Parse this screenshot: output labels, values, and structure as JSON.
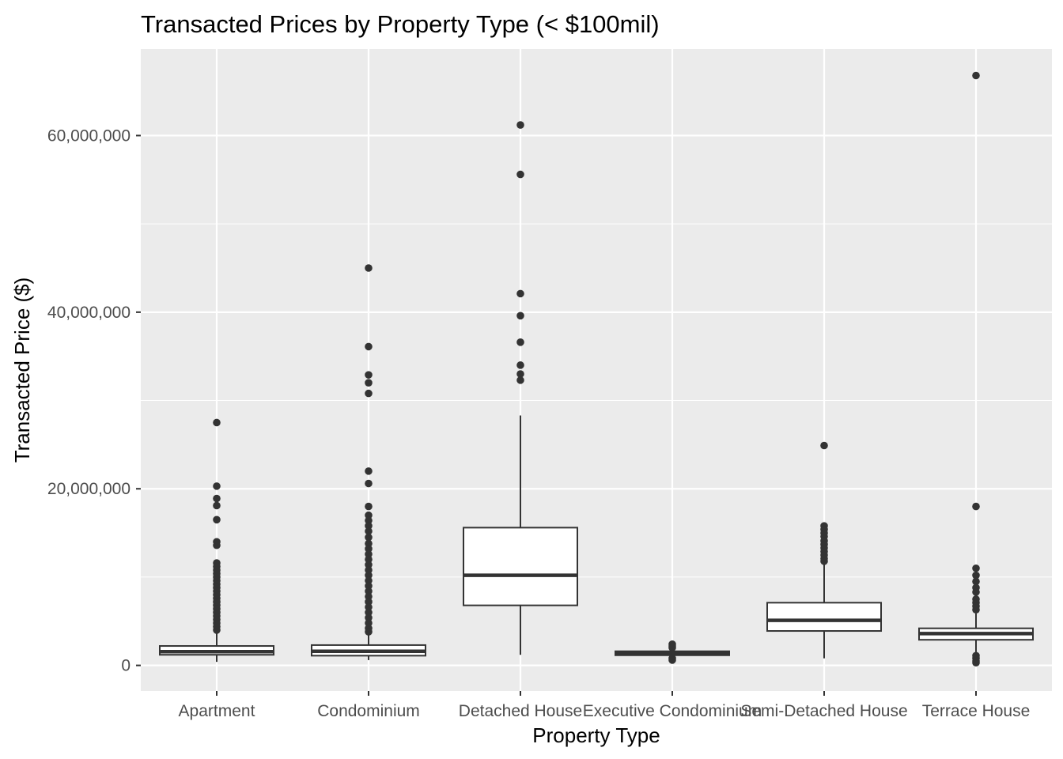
{
  "chart_data": {
    "type": "boxplot",
    "title": "Transacted Prices by Property Type (< $100mil)",
    "xlabel": "Property Type",
    "ylabel": "Transacted Price ($)",
    "ylim": [
      -2900000,
      69800000
    ],
    "yticks": [
      0,
      20000000,
      40000000,
      60000000
    ],
    "ytick_labels": [
      "0",
      "20,000,000",
      "40,000,000",
      "60,000,000"
    ],
    "grid": true,
    "categories": [
      "Apartment",
      "Condominium",
      "Detached House",
      "Executive Condominium",
      "Semi-Detached House",
      "Terrace House"
    ],
    "boxes": [
      {
        "category": "Apartment",
        "whisker_low": 400000,
        "q1": 1200000,
        "median": 1550000,
        "q3": 2200000,
        "whisker_high": 3700000,
        "outliers": [
          27500000,
          20300000,
          18900000,
          18100000,
          16500000,
          14000000,
          13600000,
          11600000,
          11200000,
          10800000,
          10400000,
          10000000,
          9600000,
          9200000,
          8800000,
          8400000,
          8000000,
          7600000,
          7200000,
          6800000,
          6400000,
          6000000,
          5600000,
          5200000,
          4800000,
          4400000,
          4000000
        ]
      },
      {
        "category": "Condominium",
        "whisker_low": 600000,
        "q1": 1100000,
        "median": 1600000,
        "q3": 2300000,
        "whisker_high": 3600000,
        "outliers": [
          45000000,
          36100000,
          32900000,
          32000000,
          30800000,
          22000000,
          20600000,
          18000000,
          17000000,
          16400000,
          15800000,
          15200000,
          14500000,
          13800000,
          13200000,
          12600000,
          12000000,
          11400000,
          10800000,
          10200000,
          9600000,
          9000000,
          8400000,
          7800000,
          7200000,
          6600000,
          6000000,
          5400000,
          4800000,
          4200000,
          3800000
        ]
      },
      {
        "category": "Detached House",
        "whisker_low": 1200000,
        "q1": 6800000,
        "median": 10200000,
        "q3": 15600000,
        "whisker_high": 28300000,
        "outliers": [
          61200000,
          55600000,
          42100000,
          39600000,
          36600000,
          34000000,
          33000000,
          32300000
        ]
      },
      {
        "category": "Executive Condominium",
        "whisker_low": 900000,
        "q1": 1150000,
        "median": 1400000,
        "q3": 1600000,
        "whisker_high": 1750000,
        "outliers": [
          2400000,
          2200000,
          2000000,
          800000,
          600000
        ]
      },
      {
        "category": "Semi-Detached House",
        "whisker_low": 800000,
        "q1": 3900000,
        "median": 5100000,
        "q3": 7100000,
        "whisker_high": 11500000,
        "outliers": [
          24900000,
          15800000,
          15400000,
          15000000,
          14600000,
          14100000,
          13700000,
          13300000,
          12900000,
          12500000,
          12100000,
          11800000
        ]
      },
      {
        "category": "Terrace House",
        "whisker_low": 1500000,
        "q1": 2900000,
        "median": 3600000,
        "q3": 4200000,
        "whisker_high": 5900000,
        "outliers": [
          66800000,
          18000000,
          11000000,
          10200000,
          9500000,
          8800000,
          8300000,
          7500000,
          7100000,
          6700000,
          6300000,
          1100000,
          800000,
          500000,
          300000
        ]
      }
    ]
  },
  "colors": {
    "panel_bg": "#ebebeb",
    "grid_major": "#ffffff",
    "box_fill": "#ffffff",
    "box_line": "#333333",
    "tick": "#333333",
    "tick_label": "#4d4d4d",
    "text": "#000000"
  }
}
